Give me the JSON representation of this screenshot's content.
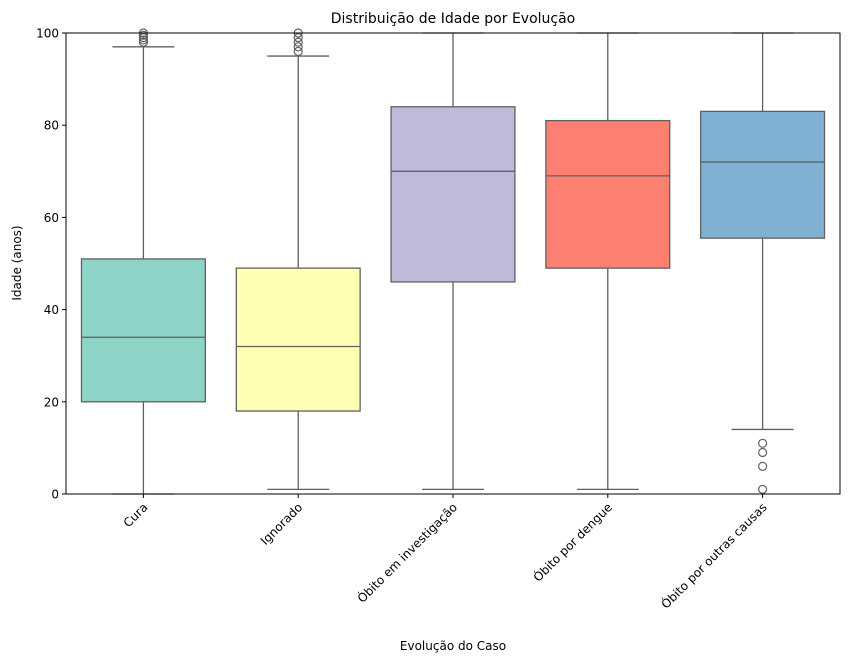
{
  "chart_data": {
    "type": "box",
    "title": "Distribuição de Idade por Evolução",
    "xlabel": "Evolução do Caso",
    "ylabel": "Idade (anos)",
    "ylim": [
      0,
      100
    ],
    "yticks": [
      0,
      20,
      40,
      60,
      80,
      100
    ],
    "grid": false,
    "categories": [
      "Cura",
      "Ignorado",
      "Óbito em investigação",
      "Óbito por dengue",
      "Óbito por outras causas"
    ],
    "boxes": [
      {
        "category": "Cura",
        "color": "#8dd3c7",
        "whisker_low": 0,
        "q1": 20,
        "median": 34,
        "q3": 51,
        "whisker_high": 97,
        "outliers": [
          98,
          98.5,
          99,
          99.5,
          100
        ]
      },
      {
        "category": "Ignorado",
        "color": "#ffffb3",
        "whisker_low": 1,
        "q1": 18,
        "median": 32,
        "q3": 49,
        "whisker_high": 95,
        "outliers": [
          96,
          97,
          98,
          99,
          100
        ]
      },
      {
        "category": "Óbito em investigação",
        "color": "#bebada",
        "whisker_low": 1,
        "q1": 46,
        "median": 70,
        "q3": 84,
        "whisker_high": 100,
        "outliers": []
      },
      {
        "category": "Óbito por dengue",
        "color": "#fb8072",
        "whisker_low": 1,
        "q1": 49,
        "median": 69,
        "q3": 81,
        "whisker_high": 100,
        "outliers": []
      },
      {
        "category": "Óbito por outras causas",
        "color": "#80b1d3",
        "whisker_low": 14,
        "q1": 55.5,
        "median": 72,
        "q3": 83,
        "whisker_high": 100,
        "outliers": [
          1,
          6,
          9,
          11
        ]
      }
    ],
    "line_color": "#606060"
  }
}
